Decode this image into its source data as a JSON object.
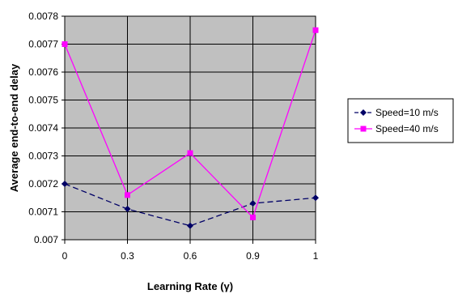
{
  "chart_data": {
    "type": "line",
    "title": "",
    "xlabel": "Learning Rate (γ)",
    "ylabel": "Average end-to-end delay",
    "categories": [
      "0",
      "0.3",
      "0.6",
      "0.9",
      "1"
    ],
    "ylim": [
      0.007,
      0.0078
    ],
    "yticks": [
      "0.007",
      "0.0071",
      "0.0072",
      "0.0073",
      "0.0074",
      "0.0075",
      "0.0076",
      "0.0077",
      "0.0078"
    ],
    "grid": "horizontal",
    "legend_position": "right",
    "plot_background": "#c0c0c0",
    "series": [
      {
        "name": "Speed=10 m/s",
        "values": [
          0.0072,
          0.00711,
          0.00705,
          0.00713,
          0.00715
        ],
        "color": "#000066",
        "marker": "diamond",
        "line": "dashed"
      },
      {
        "name": "Speed=40 m/s",
        "values": [
          0.0077,
          0.00716,
          0.00731,
          0.00708,
          0.00775
        ],
        "color": "#ff00ff",
        "marker": "square",
        "line": "solid"
      }
    ]
  }
}
